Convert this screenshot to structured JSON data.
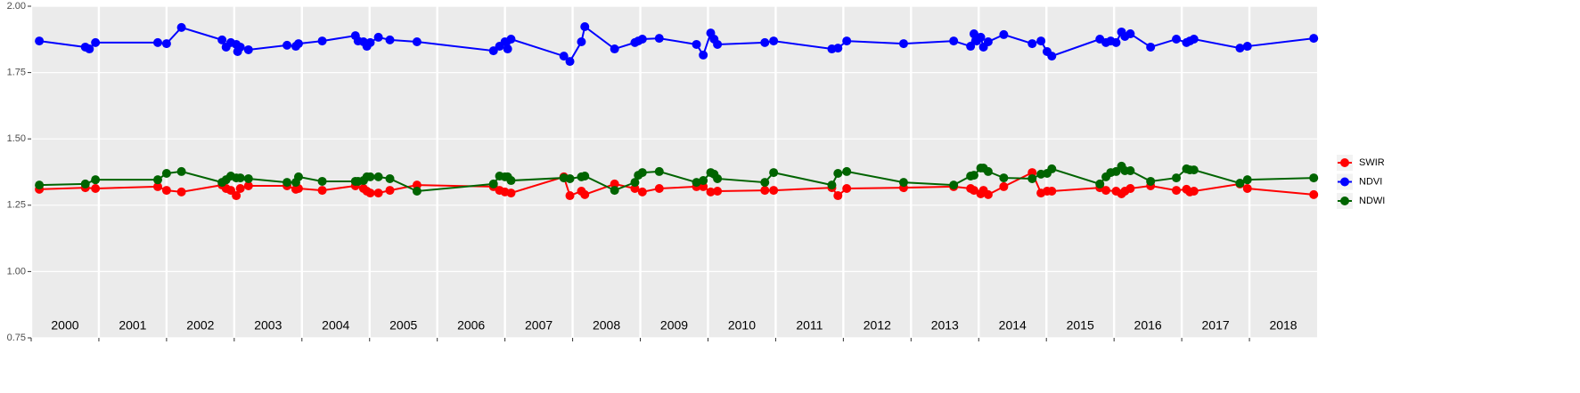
{
  "chart_data": {
    "type": "line",
    "xlim": [
      2000,
      2019
    ],
    "xticks": [
      2000,
      2001,
      2002,
      2003,
      2004,
      2005,
      2006,
      2007,
      2008,
      2009,
      2010,
      2011,
      2012,
      2013,
      2014,
      2015,
      2016,
      2017,
      2018
    ],
    "ylim": [
      0.75,
      2.0
    ],
    "yticks": [
      0.75,
      {
        "value": 1,
        "label": "1.00"
      },
      1.25,
      {
        "value": 1.5,
        "label": "1.50"
      },
      1.75,
      {
        "value": 2,
        "label": "2.00"
      }
    ],
    "grid": true,
    "legend": "right",
    "series": [
      {
        "name": "SWIR",
        "color": "#ff0000",
        "x": [
          2000.12,
          2000.8,
          2000.95,
          2001.87,
          2002.0,
          2002.22,
          2002.82,
          2002.88,
          2002.95,
          2003.03,
          2003.09,
          2003.21,
          2003.78,
          2003.91,
          2003.95,
          2004.3,
          2004.79,
          2004.91,
          2004.96,
          2005.01,
          2005.13,
          2005.3,
          2005.7,
          2006.83,
          2006.92,
          2007.0,
          2007.09,
          2007.87,
          2007.96,
          2008.13,
          2008.18,
          2008.62,
          2008.92,
          2009.03,
          2009.28,
          2009.83,
          2009.93,
          2010.04,
          2010.14,
          2010.84,
          2010.97,
          2011.83,
          2011.92,
          2012.05,
          2012.89,
          2013.63,
          2013.88,
          2013.93,
          2014.03,
          2014.07,
          2014.14,
          2014.37,
          2014.79,
          2014.92,
          2015.01,
          2015.08,
          2015.79,
          2015.88,
          2016.03,
          2016.11,
          2016.16,
          2016.24,
          2016.54,
          2016.92,
          2017.07,
          2017.12,
          2017.18,
          2017.86,
          2017.97,
          2018.95
        ],
        "values": [
          1.31,
          1.316,
          1.313,
          1.32,
          1.306,
          1.3,
          1.326,
          1.313,
          1.306,
          1.286,
          1.313,
          1.323,
          1.323,
          1.31,
          1.313,
          1.306,
          1.323,
          1.313,
          1.303,
          1.296,
          1.296,
          1.306,
          1.326,
          1.32,
          1.306,
          1.3,
          1.296,
          1.357,
          1.286,
          1.303,
          1.29,
          1.33,
          1.313,
          1.3,
          1.313,
          1.32,
          1.32,
          1.3,
          1.303,
          1.306,
          1.306,
          1.316,
          1.286,
          1.313,
          1.316,
          1.32,
          1.313,
          1.306,
          1.293,
          1.306,
          1.29,
          1.32,
          1.373,
          1.296,
          1.303,
          1.303,
          1.316,
          1.306,
          1.303,
          1.293,
          1.303,
          1.313,
          1.323,
          1.306,
          1.31,
          1.3,
          1.303,
          1.33,
          1.313,
          1.29
        ]
      },
      {
        "name": "NDVI",
        "color": "#0000ff",
        "x": [
          2000.12,
          2000.8,
          2000.86,
          2000.95,
          2001.87,
          2002.0,
          2002.22,
          2002.82,
          2002.88,
          2002.95,
          2003.03,
          2003.05,
          2003.09,
          2003.21,
          2003.78,
          2003.91,
          2003.95,
          2004.3,
          2004.79,
          2004.83,
          2004.91,
          2004.96,
          2005.01,
          2005.13,
          2005.3,
          2005.7,
          2006.83,
          2006.92,
          2007.0,
          2007.04,
          2007.09,
          2007.87,
          2007.96,
          2008.13,
          2008.18,
          2008.62,
          2008.92,
          2008.97,
          2009.03,
          2009.28,
          2009.83,
          2009.93,
          2010.04,
          2010.09,
          2010.14,
          2010.84,
          2010.97,
          2011.83,
          2011.92,
          2012.05,
          2012.89,
          2013.63,
          2013.88,
          2013.93,
          2013.97,
          2014.03,
          2014.07,
          2014.14,
          2014.37,
          2014.79,
          2014.92,
          2015.01,
          2015.08,
          2015.79,
          2015.88,
          2015.95,
          2016.03,
          2016.11,
          2016.16,
          2016.24,
          2016.54,
          2016.92,
          2017.07,
          2017.12,
          2017.18,
          2017.86,
          2017.97,
          2018.95
        ],
        "values": [
          1.869,
          1.846,
          1.839,
          1.863,
          1.863,
          1.859,
          1.92,
          1.873,
          1.846,
          1.863,
          1.856,
          1.829,
          1.846,
          1.836,
          1.853,
          1.849,
          1.859,
          1.869,
          1.889,
          1.869,
          1.866,
          1.849,
          1.863,
          1.883,
          1.873,
          1.866,
          1.832,
          1.849,
          1.866,
          1.839,
          1.876,
          1.812,
          1.792,
          1.866,
          1.923,
          1.839,
          1.863,
          1.869,
          1.876,
          1.879,
          1.856,
          1.816,
          1.899,
          1.876,
          1.856,
          1.863,
          1.869,
          1.839,
          1.842,
          1.869,
          1.859,
          1.869,
          1.849,
          1.896,
          1.869,
          1.883,
          1.846,
          1.866,
          1.893,
          1.859,
          1.869,
          1.829,
          1.812,
          1.876,
          1.863,
          1.869,
          1.863,
          1.903,
          1.886,
          1.896,
          1.846,
          1.876,
          1.863,
          1.869,
          1.876,
          1.842,
          1.849,
          1.879
        ]
      },
      {
        "name": "NDWI",
        "color": "#006400",
        "x": [
          2000.12,
          2000.8,
          2000.95,
          2001.87,
          2002.0,
          2002.22,
          2002.82,
          2002.88,
          2002.95,
          2003.03,
          2003.09,
          2003.21,
          2003.78,
          2003.91,
          2003.95,
          2004.3,
          2004.79,
          2004.83,
          2004.91,
          2004.96,
          2005.01,
          2005.13,
          2005.3,
          2005.7,
          2006.83,
          2006.92,
          2007.0,
          2007.04,
          2007.09,
          2007.87,
          2007.96,
          2008.13,
          2008.18,
          2008.62,
          2008.92,
          2008.97,
          2009.03,
          2009.28,
          2009.83,
          2009.93,
          2010.04,
          2010.09,
          2010.14,
          2010.84,
          2010.97,
          2011.83,
          2011.92,
          2012.05,
          2012.89,
          2013.63,
          2013.88,
          2013.93,
          2014.03,
          2014.07,
          2014.14,
          2014.37,
          2014.79,
          2014.92,
          2015.01,
          2015.08,
          2015.79,
          2015.88,
          2015.95,
          2016.03,
          2016.11,
          2016.16,
          2016.24,
          2016.54,
          2016.92,
          2017.07,
          2017.12,
          2017.18,
          2017.86,
          2017.97,
          2018.95
        ],
        "values": [
          1.326,
          1.33,
          1.346,
          1.346,
          1.37,
          1.377,
          1.336,
          1.346,
          1.36,
          1.353,
          1.353,
          1.35,
          1.336,
          1.336,
          1.357,
          1.34,
          1.34,
          1.34,
          1.343,
          1.357,
          1.357,
          1.357,
          1.35,
          1.303,
          1.33,
          1.36,
          1.357,
          1.357,
          1.343,
          1.353,
          1.35,
          1.357,
          1.36,
          1.306,
          1.336,
          1.363,
          1.373,
          1.377,
          1.336,
          1.343,
          1.373,
          1.367,
          1.35,
          1.336,
          1.373,
          1.326,
          1.37,
          1.377,
          1.336,
          1.326,
          1.36,
          1.363,
          1.39,
          1.39,
          1.377,
          1.353,
          1.35,
          1.367,
          1.37,
          1.387,
          1.33,
          1.357,
          1.373,
          1.377,
          1.397,
          1.38,
          1.38,
          1.34,
          1.353,
          1.387,
          1.383,
          1.383,
          1.333,
          1.346,
          1.353
        ]
      }
    ]
  }
}
